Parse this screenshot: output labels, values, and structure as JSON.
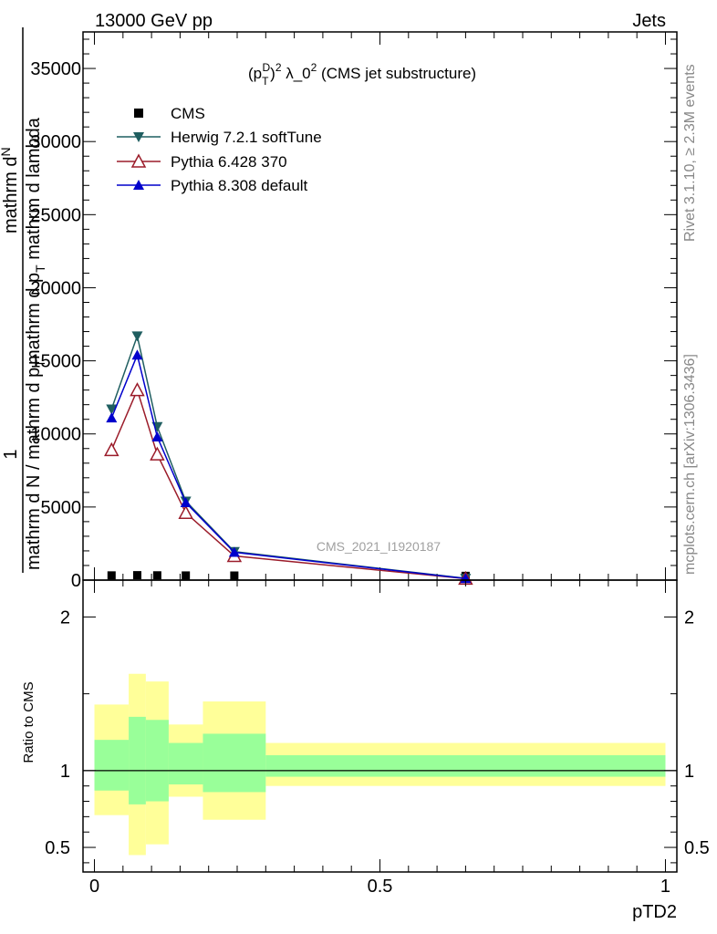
{
  "header": {
    "left": "13000 GeV pp",
    "right": "Jets"
  },
  "side_labels": {
    "rivet": "Rivet 3.1.10, ≥ 2.3M events",
    "mcplots": "mcplots.cern.ch [arXiv:1306.3436]"
  },
  "watermark": "CMS_2021_I1920187",
  "chart_data": [
    {
      "type": "line",
      "title_parts": [
        "(p",
        "T",
        "D",
        ")",
        "2",
        " λ_0",
        "2",
        " (CMS jet substructure)"
      ],
      "ylabel_num": "mathrm d",
      "ylabel_num2": "N",
      "ylabel_num_tail": "mathrm d p",
      "ylabel_num_tail2": "T",
      "ylabel_num_tail3": " mathrm d lambda",
      "ylabel_one": "1",
      "ylabel_den": "mathrm d N / mathrm d p",
      "ylabel_den2": "T",
      "ylim": [
        0,
        37500
      ],
      "yticks": [
        0,
        5000,
        10000,
        15000,
        20000,
        25000,
        30000,
        35000
      ],
      "yticklabels": [
        "0",
        "5000",
        "10000",
        "15000",
        "20000",
        "25000",
        "30000",
        "35000"
      ],
      "xlim": [
        -0.02,
        1.02
      ],
      "legend": [
        {
          "name": "CMS",
          "color": "#000000",
          "marker": "square"
        },
        {
          "name": "Herwig 7.2.1 softTune",
          "color": "#1f5e60",
          "marker": "tri-down"
        },
        {
          "name": "Pythia 6.428 370",
          "color": "#9b1c2a",
          "marker": "tri-up-open"
        },
        {
          "name": "Pythia 8.308 default",
          "color": "#0000cc",
          "marker": "tri-up"
        }
      ],
      "series": [
        {
          "name": "CMS",
          "x": [
            0.03,
            0.075,
            0.11,
            0.16,
            0.245,
            0.65
          ],
          "values": [
            40,
            55,
            45,
            35,
            30,
            8
          ]
        },
        {
          "name": "Herwig 7.2.1 softTune",
          "x": [
            0.03,
            0.075,
            0.11,
            0.16,
            0.245,
            0.65
          ],
          "values": [
            11700,
            16700,
            10500,
            5400,
            1950,
            120
          ]
        },
        {
          "name": "Pythia 6.428 370",
          "x": [
            0.03,
            0.075,
            0.11,
            0.16,
            0.245,
            0.65
          ],
          "values": [
            8900,
            13000,
            8600,
            4600,
            1650,
            100
          ]
        },
        {
          "name": "Pythia 8.308 default",
          "x": [
            0.03,
            0.075,
            0.11,
            0.16,
            0.245,
            0.65
          ],
          "values": [
            11100,
            15400,
            9800,
            5300,
            1900,
            110
          ]
        }
      ]
    },
    {
      "type": "area",
      "ylabel": "Ratio to CMS",
      "xlabel": "pTD2",
      "ylim": [
        0.34,
        2.24
      ],
      "yticks": [
        0.5,
        1,
        2
      ],
      "yticklabels": [
        "0.5",
        "1",
        "2"
      ],
      "xticks": [
        0,
        0.5,
        1
      ],
      "xticklabels": [
        "0",
        "0.5",
        "1"
      ],
      "reference": 1,
      "bins": [
        {
          "x0": 0.0,
          "x1": 0.06,
          "green": [
            0.87,
            1.2
          ],
          "yellow": [
            0.71,
            1.43
          ]
        },
        {
          "x0": 0.06,
          "x1": 0.09,
          "green": [
            0.78,
            1.35
          ],
          "yellow": [
            0.45,
            1.63
          ]
        },
        {
          "x0": 0.09,
          "x1": 0.13,
          "green": [
            0.8,
            1.33
          ],
          "yellow": [
            0.52,
            1.58
          ]
        },
        {
          "x0": 0.13,
          "x1": 0.19,
          "green": [
            0.91,
            1.18
          ],
          "yellow": [
            0.83,
            1.3
          ]
        },
        {
          "x0": 0.19,
          "x1": 0.3,
          "green": [
            0.86,
            1.24
          ],
          "yellow": [
            0.68,
            1.45
          ]
        },
        {
          "x0": 0.3,
          "x1": 1.0,
          "green": [
            0.96,
            1.1
          ],
          "yellow": [
            0.9,
            1.18
          ]
        }
      ]
    }
  ]
}
